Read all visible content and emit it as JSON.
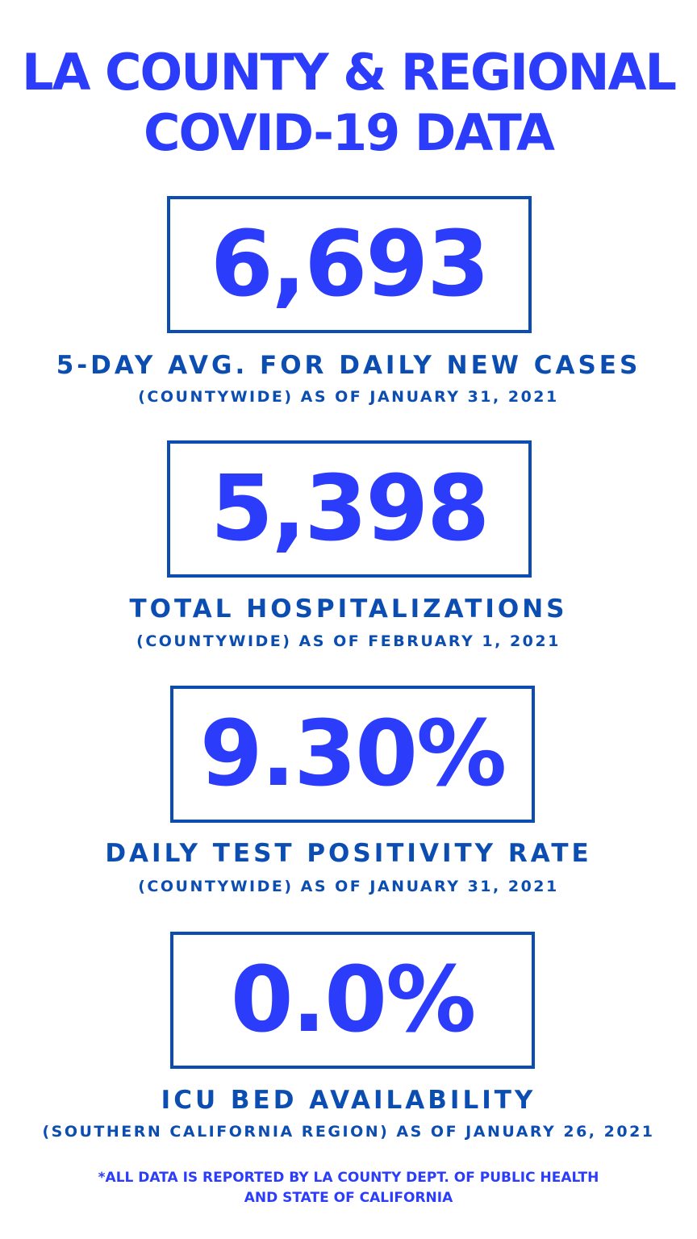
{
  "title": {
    "line1": "LA COUNTY & REGIONAL",
    "line2": "COVID-19 DATA"
  },
  "colors": {
    "accent": "#2b3dfb",
    "label": "#0c4db2"
  },
  "stats": [
    {
      "value": "6,693",
      "label": "5-DAY AVG. FOR DAILY NEW CASES",
      "sub": "(COUNTYWIDE) AS OF JANUARY 31, 2021"
    },
    {
      "value": "5,398",
      "label": "TOTAL HOSPITALIZATIONS",
      "sub": "(COUNTYWIDE) AS OF FEBRUARY 1, 2021"
    },
    {
      "value": "9.30%",
      "label": "DAILY TEST POSITIVITY RATE",
      "sub": "(COUNTYWIDE) AS OF JANUARY 31, 2021"
    },
    {
      "value": "0.0%",
      "label": "ICU BED AVAILABILITY",
      "sub": "(SOUTHERN CALIFORNIA REGION) AS OF JANUARY 26, 2021"
    }
  ],
  "footer": {
    "line1": "*ALL DATA IS REPORTED BY LA COUNTY DEPT. OF PUBLIC HEALTH",
    "line2": "AND STATE OF CALIFORNIA"
  }
}
